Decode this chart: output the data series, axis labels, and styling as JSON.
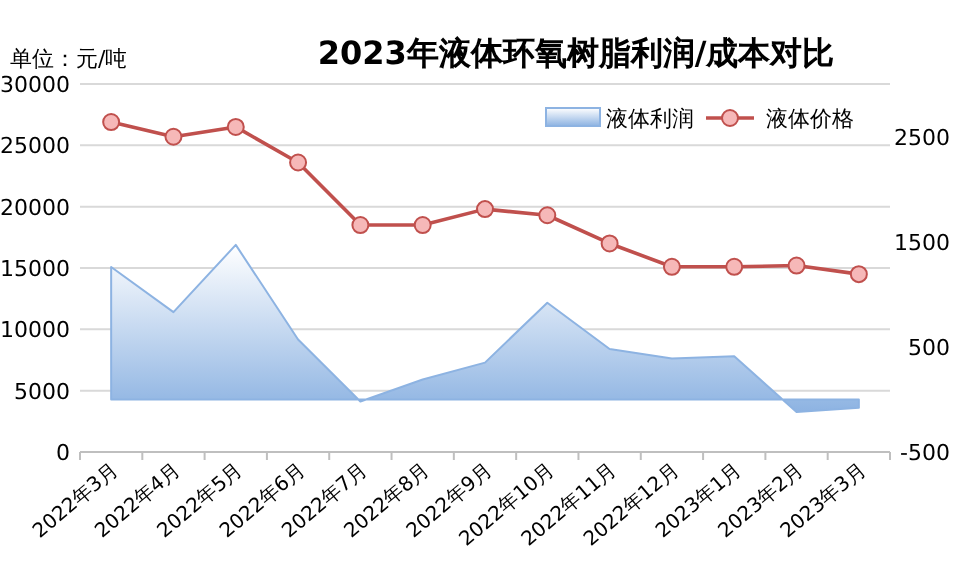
{
  "chart_data": {
    "type": "line",
    "title": "2023年液体环氧树脂利润/成本对比",
    "annotations": [
      "单位：元/吨"
    ],
    "categories": [
      "2022年3月",
      "2022年4月",
      "2022年5月",
      "2022年6月",
      "2022年7月",
      "2022年8月",
      "2022年9月",
      "2022年10月",
      "2022年11月",
      "2022年12月",
      "2023年1月",
      "2023年2月",
      "2023年3月"
    ],
    "series": [
      {
        "name": "液体利润",
        "type": "area",
        "axis": "y2",
        "color": "#8db3e2",
        "values": [
          1260,
          830,
          1470,
          570,
          -20,
          190,
          350,
          920,
          480,
          390,
          410,
          -120,
          -80
        ]
      },
      {
        "name": "液体价格",
        "color": "#c0504d",
        "marker": "circle",
        "values": [
          26900,
          25700,
          26500,
          23600,
          18500,
          18500,
          19800,
          19300,
          17000,
          15100,
          15100,
          15200,
          14500
        ]
      }
    ],
    "ylim": [
      0,
      30000
    ],
    "yticks": [
      0,
      5000,
      10000,
      15000,
      20000,
      25000,
      30000
    ],
    "y2lim": [
      -500,
      3000
    ],
    "y2ticks": [
      -500,
      500,
      1500,
      2500
    ],
    "grid": "y",
    "legend": "top right"
  }
}
